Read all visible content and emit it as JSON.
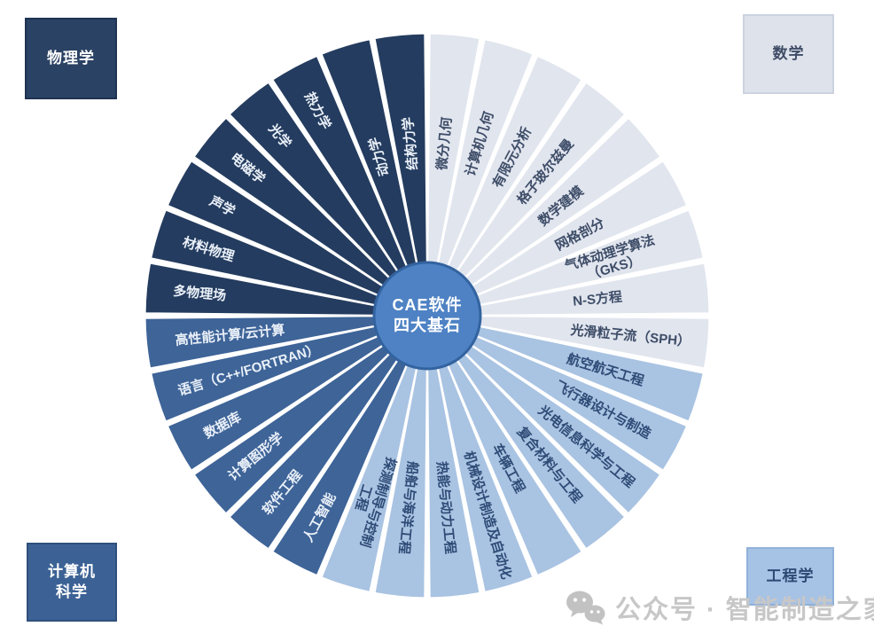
{
  "center": {
    "line1": "CAE软件",
    "line2": "四大基石",
    "fill": "#4e82c4",
    "border": "#33639f",
    "text_color": "#ffffff"
  },
  "corner_boxes": {
    "physics": {
      "lines": [
        "物理学"
      ]
    },
    "math": {
      "lines": [
        "数学"
      ]
    },
    "cs": {
      "lines": [
        "计算机",
        "科学"
      ]
    },
    "engineering": {
      "lines": [
        "工程学"
      ]
    }
  },
  "chart_data": {
    "type": "pie",
    "title": "CAE软件四大基石",
    "legend_position": "corners",
    "quadrants": [
      {
        "name": "数学",
        "segment_color": "#e1e5ee",
        "label_color": "#3e4d68",
        "segments": [
          [
            "微分几何"
          ],
          [
            "计算机几何"
          ],
          [
            "有限元分析"
          ],
          [
            "格子玻尔兹曼"
          ],
          [
            "数学建模"
          ],
          [
            "网格剖分"
          ],
          [
            "气体动理学算法",
            "（GKS）"
          ],
          [
            "N-S方程"
          ],
          [
            "光滑粒子流（SPH）"
          ]
        ]
      },
      {
        "name": "工程学",
        "segment_color": "#a9c3e2",
        "label_color": "#2e4b76",
        "segments": [
          [
            "航空航天工程"
          ],
          [
            "飞行器设计与制造"
          ],
          [
            "光电信息科学与工程"
          ],
          [
            "复合材料与工程"
          ],
          [
            "车辆工程"
          ],
          [
            "机械设计制造及自动化"
          ],
          [
            "热能与动力工程"
          ],
          [
            "船舶与海洋工程"
          ],
          [
            "探测制导与控制",
            "工程"
          ]
        ]
      },
      {
        "name": "计算机科学",
        "segment_color": "#3e6498",
        "label_color": "#eaf0f8",
        "segments": [
          [
            "人工智能"
          ],
          [
            "软件工程"
          ],
          [
            "计算图形学"
          ],
          [
            "数据库"
          ],
          [
            "语言（C++/FORTRAN）"
          ],
          [
            "高性能计算/云计算"
          ]
        ]
      },
      {
        "name": "物理学",
        "segment_color": "#243c5f",
        "label_color": "#eaf0f8",
        "segments": [
          [
            "多物理场"
          ],
          [
            "材料物理"
          ],
          [
            "声学"
          ],
          [
            "电磁学"
          ],
          [
            "光学"
          ],
          [
            "热力学"
          ],
          [
            "动力学"
          ],
          [
            "结构力学"
          ]
        ]
      }
    ]
  },
  "watermark": {
    "text": "公众号 · 智能制造之家",
    "icon": "wechat-icon"
  }
}
